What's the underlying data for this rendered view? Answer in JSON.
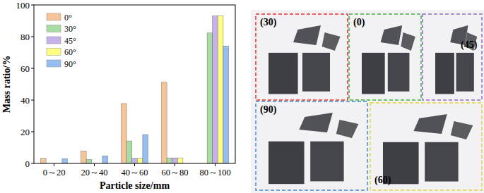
{
  "chart_data": {
    "type": "bar",
    "x_label": "Particle size/mm",
    "y_label": "Mass ratio/%",
    "categories": [
      "0～20",
      "20～40",
      "40～60",
      "60～80",
      "80～100"
    ],
    "series": [
      {
        "name": "0°",
        "color": "#f5c498",
        "values": [
          3.2,
          7.8,
          37.8,
          51.2,
          0
        ]
      },
      {
        "name": "30°",
        "color": "#a8dca2",
        "values": [
          0,
          2.5,
          14.2,
          3.5,
          82.3
        ]
      },
      {
        "name": "45°",
        "color": "#c6b2e8",
        "values": [
          0,
          0,
          3.2,
          3.5,
          93
        ]
      },
      {
        "name": "60°",
        "color": "#ffff82",
        "values": [
          0,
          0,
          3.2,
          3.5,
          93
        ]
      },
      {
        "name": "90°",
        "color": "#96bef0",
        "values": [
          3,
          4.8,
          18.2,
          0,
          74
        ]
      }
    ],
    "ylim": [
      0,
      100
    ],
    "yticks": [
      0,
      20,
      40,
      60,
      80,
      100
    ],
    "grid": false,
    "legend": "upper left"
  },
  "photo": {
    "panels": [
      "(30)",
      "(0)",
      "(45)",
      "(90)",
      "(60)"
    ]
  }
}
